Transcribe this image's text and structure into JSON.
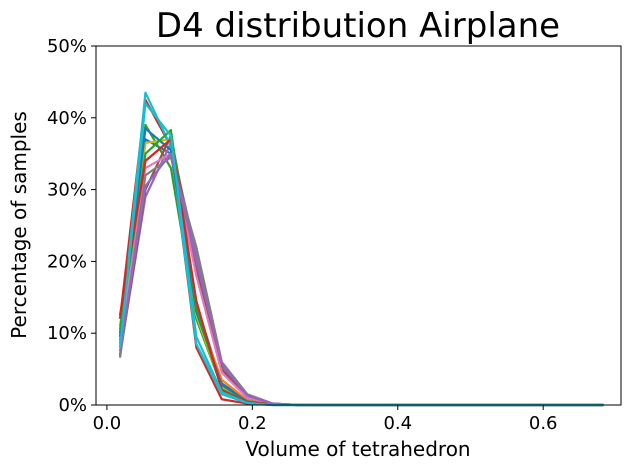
{
  "chart_data": {
    "type": "line",
    "title": "D4 distribution Airplane",
    "xlabel": "Volume of tetrahedron",
    "ylabel": "Percentage of samples",
    "xlim": [
      -0.015,
      0.707
    ],
    "ylim": [
      0,
      50
    ],
    "x_ticks": [
      0.0,
      0.2,
      0.4,
      0.6
    ],
    "x_tick_labels": [
      "0.0",
      "0.2",
      "0.4",
      "0.6"
    ],
    "y_ticks": [
      0,
      10,
      20,
      30,
      40,
      50
    ],
    "y_tick_labels": [
      "0%",
      "10%",
      "20%",
      "30%",
      "40%",
      "50%"
    ],
    "grid": false,
    "legend": "none",
    "x": [
      0.018,
      0.053,
      0.088,
      0.123,
      0.158,
      0.193,
      0.228,
      0.263,
      0.298,
      0.333,
      0.368,
      0.403,
      0.438,
      0.473,
      0.508,
      0.543,
      0.578,
      0.613,
      0.648,
      0.683
    ],
    "series": [
      {
        "color": "#1f77b4",
        "values": [
          10.0,
          37.0,
          35.0,
          14.0,
          3.0,
          0.6,
          0.1,
          0,
          0,
          0,
          0,
          0,
          0,
          0,
          0,
          0,
          0,
          0,
          0,
          0
        ]
      },
      {
        "color": "#ff7f0e",
        "values": [
          11.0,
          34.0,
          37.0,
          13.0,
          3.5,
          0.7,
          0.1,
          0,
          0,
          0,
          0,
          0,
          0,
          0,
          0,
          0,
          0,
          0,
          0,
          0
        ]
      },
      {
        "color": "#2ca02c",
        "values": [
          9.0,
          39.0,
          33.0,
          12.0,
          2.5,
          0.5,
          0.1,
          0,
          0,
          0,
          0,
          0,
          0,
          0,
          0,
          0,
          0,
          0,
          0,
          0
        ]
      },
      {
        "color": "#d62728",
        "values": [
          12.0,
          42.5,
          36.0,
          8.0,
          0.8,
          0.2,
          0.0,
          0,
          0,
          0,
          0,
          0,
          0,
          0,
          0,
          0,
          0,
          0,
          0,
          0
        ]
      },
      {
        "color": "#9467bd",
        "values": [
          7.0,
          29.0,
          36.5,
          21.0,
          5.5,
          1.2,
          0.2,
          0,
          0,
          0,
          0,
          0,
          0,
          0,
          0,
          0,
          0,
          0,
          0,
          0
        ]
      },
      {
        "color": "#8c564b",
        "values": [
          6.8,
          30.0,
          37.5,
          19.0,
          5.0,
          1.0,
          0.2,
          0,
          0,
          0,
          0,
          0,
          0,
          0,
          0,
          0,
          0,
          0,
          0,
          0
        ]
      },
      {
        "color": "#e377c2",
        "values": [
          8.0,
          33.0,
          35.0,
          18.0,
          4.5,
          1.0,
          0.2,
          0,
          0,
          0,
          0,
          0,
          0,
          0,
          0,
          0,
          0,
          0,
          0,
          0
        ]
      },
      {
        "color": "#7f7f7f",
        "values": [
          6.6,
          32.0,
          34.5,
          22.0,
          6.0,
          1.5,
          0.2,
          0,
          0,
          0,
          0,
          0,
          0,
          0,
          0,
          0,
          0,
          0,
          0,
          0
        ]
      },
      {
        "color": "#bcbd22",
        "values": [
          9.5,
          36.5,
          37.0,
          12.5,
          2.5,
          0.5,
          0.1,
          0,
          0,
          0,
          0,
          0,
          0,
          0,
          0,
          0,
          0,
          0,
          0,
          0
        ]
      },
      {
        "color": "#17becf",
        "values": [
          8.5,
          43.5,
          36.0,
          8.5,
          1.5,
          0.3,
          0.0,
          0,
          0,
          0,
          0,
          0,
          0,
          0,
          0,
          0,
          0,
          0,
          0,
          0
        ]
      },
      {
        "color": "#1f77b4",
        "values": [
          9.5,
          38.5,
          35.5,
          13.0,
          2.8,
          0.5,
          0.1,
          0,
          0,
          0,
          0,
          0,
          0,
          0,
          0,
          0,
          0,
          0,
          0,
          0
        ]
      },
      {
        "color": "#2ca02c",
        "values": [
          10.5,
          35.0,
          38.3,
          13.5,
          2.2,
          0.4,
          0.1,
          0,
          0,
          0,
          0,
          0,
          0,
          0,
          0,
          0,
          0,
          0,
          0,
          0
        ]
      },
      {
        "color": "#d62728",
        "values": [
          12.5,
          34.0,
          37.0,
          14.5,
          2.0,
          0.4,
          0.1,
          0,
          0,
          0,
          0,
          0,
          0,
          0,
          0,
          0,
          0,
          0,
          0,
          0
        ]
      },
      {
        "color": "#9467bd",
        "values": [
          7.5,
          30.5,
          35.0,
          20.0,
          5.8,
          1.3,
          0.2,
          0,
          0,
          0,
          0,
          0,
          0,
          0,
          0,
          0,
          0,
          0,
          0,
          0
        ]
      },
      {
        "color": "#17becf",
        "values": [
          8.0,
          42.0,
          37.5,
          9.5,
          1.8,
          0.3,
          0.0,
          0,
          0,
          0,
          0,
          0,
          0,
          0,
          0,
          0,
          0,
          0,
          0,
          0
        ]
      }
    ]
  }
}
